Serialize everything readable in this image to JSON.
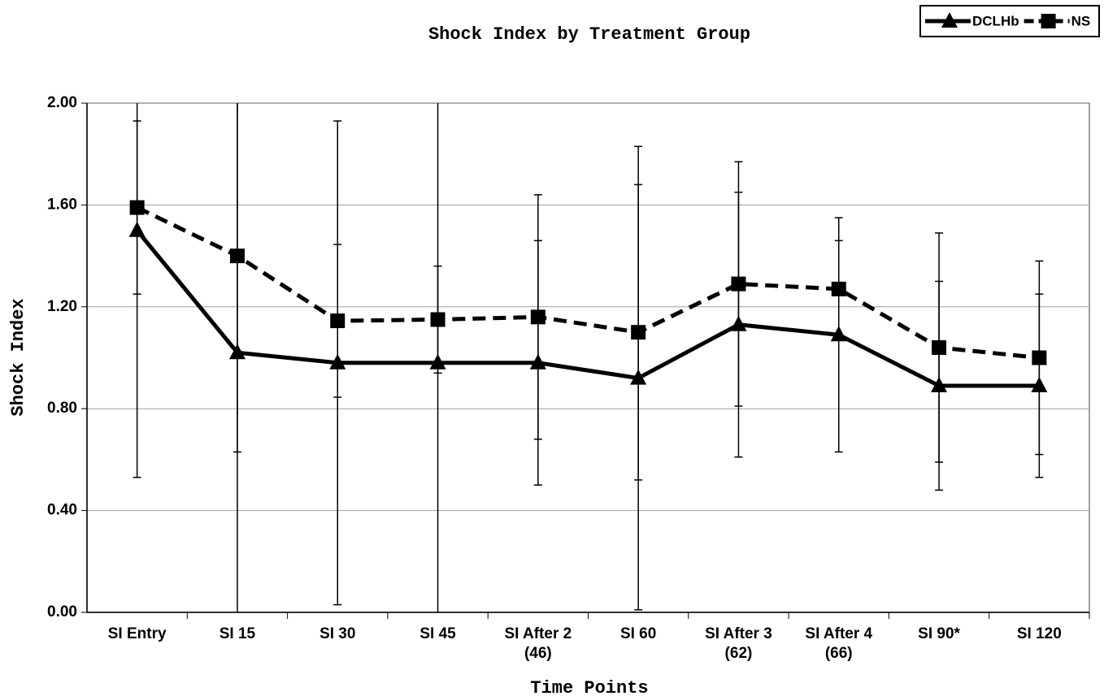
{
  "chart_data": {
    "type": "line",
    "title": "Shock Index by Treatment Group",
    "x_label": "Time Points",
    "y_label": "Shock Index",
    "categories": [
      "SI Entry",
      "SI 15",
      "SI 30",
      "SI 45",
      "SI After 2\n(46)",
      "SI 60",
      "SI After 3\n(62)",
      "SI After 4\n(66)",
      "SI 90*",
      "SI 120"
    ],
    "series": [
      {
        "name": "DCLHb",
        "color": "#000000",
        "marker": "triangle",
        "dashed": false,
        "values": [
          1.5,
          1.02,
          0.98,
          0.98,
          0.98,
          0.92,
          1.13,
          1.09,
          0.89,
          0.89
        ],
        "errors": [
          0.97,
          1.05,
          0.95,
          1.05,
          0.48,
          0.91,
          0.52,
          0.46,
          0.41,
          0.36
        ]
      },
      {
        "name": "NS",
        "color": "#000000",
        "marker": "square",
        "dashed": true,
        "values": [
          1.59,
          1.4,
          1.145,
          1.15,
          1.16,
          1.1,
          1.29,
          1.27,
          1.04,
          1.0
        ],
        "errors": [
          0.34,
          0.77,
          0.3,
          0.21,
          0.48,
          0.58,
          0.48,
          0.19,
          0.45,
          0.38
        ]
      }
    ],
    "ylim": [
      0,
      2
    ],
    "yticks": [
      {
        "value": 0,
        "label": "0.00"
      },
      {
        "value": 0.4,
        "label": "0.40"
      },
      {
        "value": 0.8,
        "label": "0.80"
      },
      {
        "value": 1.2,
        "label": "1.20"
      },
      {
        "value": 1.6,
        "label": "1.60"
      },
      {
        "value": 2,
        "label": "2.00"
      }
    ],
    "grid": true,
    "legend": "top-right"
  }
}
